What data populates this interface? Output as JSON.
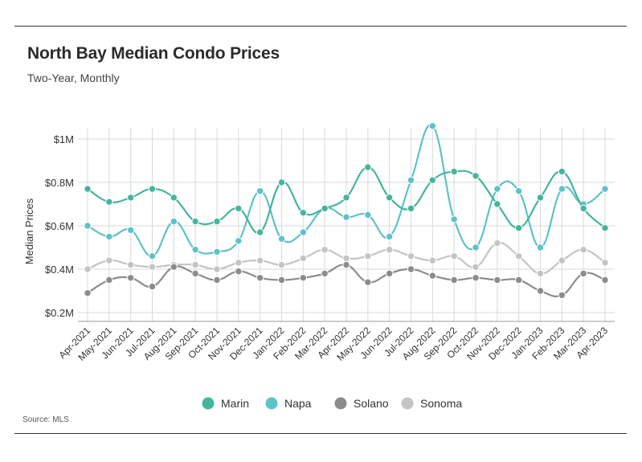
{
  "header": {
    "title": "North Bay Median Condo Prices",
    "subtitle": "Two-Year, Monthly"
  },
  "footer": {
    "source": "Source: MLS"
  },
  "chart_data": {
    "type": "line",
    "title": "North Bay Median Condo Prices",
    "subtitle": "Two-Year, Monthly",
    "xlabel": "",
    "ylabel": "Median Prices",
    "ylim": [
      0.15,
      1.1
    ],
    "yticks": [
      0.2,
      0.4,
      0.6,
      0.8,
      1.0
    ],
    "ytick_labels": [
      "$0.2M",
      "$0.4M",
      "$0.6M",
      "$0.8M",
      "$1M"
    ],
    "grid": "vertical",
    "legend_position": "bottom",
    "categories": [
      "Apr-2021",
      "May-2021",
      "Jun-2021",
      "Jul-2021",
      "Aug-2021",
      "Sep-2021",
      "Oct-2021",
      "Nov-2021",
      "Dec-2021",
      "Jan-2022",
      "Feb-2022",
      "Mar-2022",
      "Apr-2022",
      "May-2022",
      "Jun-2022",
      "Jul-2022",
      "Aug-2022",
      "Sep-2022",
      "Oct-2022",
      "Nov-2022",
      "Dec-2022",
      "Jan-2023",
      "Feb-2023",
      "Mar-2023",
      "Apr-2023"
    ],
    "series": [
      {
        "name": "Marin",
        "color": "#45b59c",
        "values": [
          0.77,
          0.71,
          0.73,
          0.77,
          0.73,
          0.62,
          0.62,
          0.68,
          0.57,
          0.8,
          0.66,
          0.68,
          0.73,
          0.87,
          0.73,
          0.68,
          0.81,
          0.85,
          0.83,
          0.7,
          0.59,
          0.73,
          0.85,
          0.68,
          0.59
        ]
      },
      {
        "name": "Napa",
        "color": "#5fc2c9",
        "values": [
          0.6,
          0.55,
          0.58,
          0.46,
          0.62,
          0.49,
          0.48,
          0.53,
          0.76,
          0.54,
          0.57,
          0.68,
          0.64,
          0.65,
          0.55,
          0.81,
          1.06,
          0.63,
          0.5,
          0.77,
          0.76,
          0.5,
          0.77,
          0.7,
          0.77
        ]
      },
      {
        "name": "Solano",
        "color": "#8c8c8c",
        "values": [
          0.29,
          0.35,
          0.36,
          0.32,
          0.41,
          0.38,
          0.35,
          0.39,
          0.36,
          0.35,
          0.36,
          0.38,
          0.42,
          0.34,
          0.38,
          0.4,
          0.37,
          0.35,
          0.36,
          0.35,
          0.35,
          0.3,
          0.28,
          0.38,
          0.35
        ]
      },
      {
        "name": "Sonoma",
        "color": "#c4c4c4",
        "values": [
          0.4,
          0.44,
          0.42,
          0.41,
          0.42,
          0.42,
          0.4,
          0.43,
          0.44,
          0.42,
          0.45,
          0.49,
          0.45,
          0.46,
          0.49,
          0.46,
          0.44,
          0.46,
          0.41,
          0.52,
          0.46,
          0.38,
          0.44,
          0.49,
          0.43
        ]
      }
    ]
  }
}
